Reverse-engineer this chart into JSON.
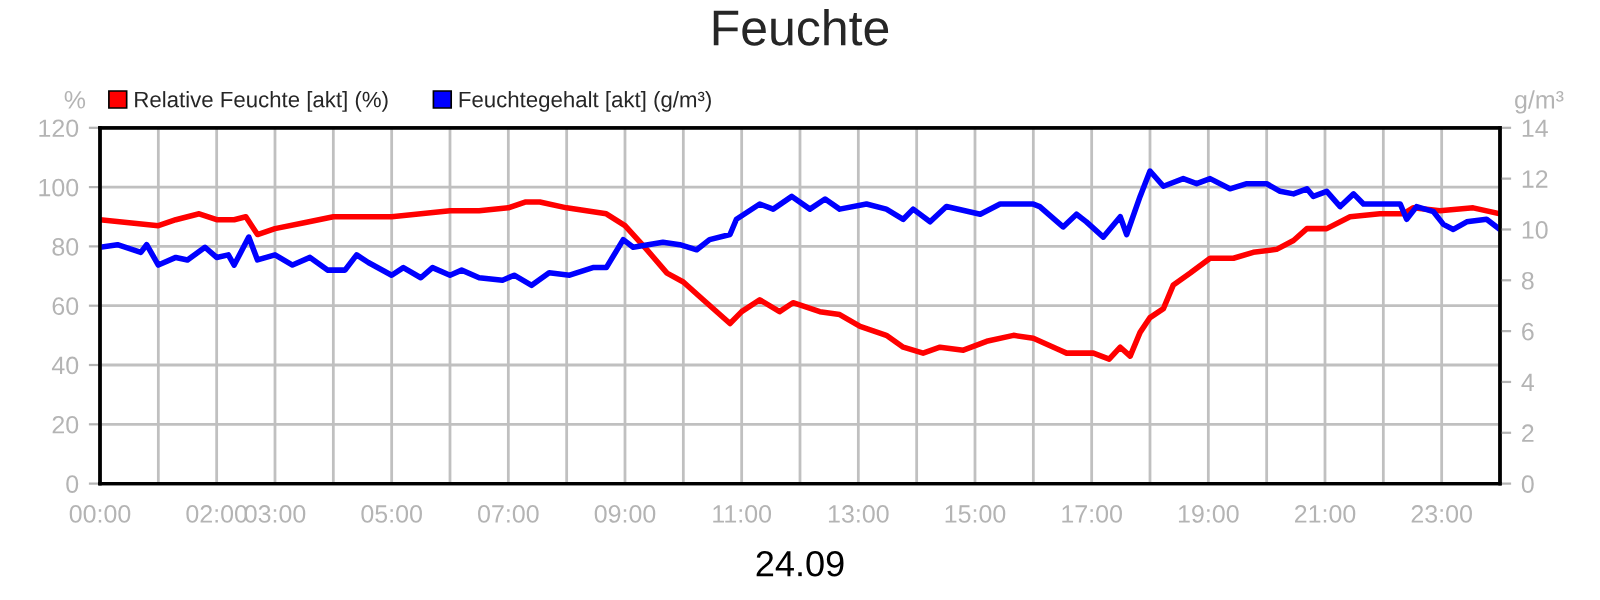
{
  "chart_data": {
    "type": "line",
    "title": "Feuchte",
    "xlabel": "24.09",
    "ylabel": "%",
    "y2label": "g/m³",
    "xlim": [
      0,
      24
    ],
    "xticks": [
      {
        "value": 0,
        "label": "00:00"
      },
      {
        "value": 1,
        "label": null
      },
      {
        "value": 2,
        "label": "02:00"
      },
      {
        "value": 3,
        "label": "03:00"
      },
      {
        "value": 4,
        "label": null
      },
      {
        "value": 5,
        "label": "05:00"
      },
      {
        "value": 6,
        "label": null
      },
      {
        "value": 7,
        "label": "07:00"
      },
      {
        "value": 8,
        "label": null
      },
      {
        "value": 9,
        "label": "09:00"
      },
      {
        "value": 10,
        "label": null
      },
      {
        "value": 11,
        "label": "11:00"
      },
      {
        "value": 12,
        "label": null
      },
      {
        "value": 13,
        "label": "13:00"
      },
      {
        "value": 14,
        "label": null
      },
      {
        "value": 15,
        "label": "15:00"
      },
      {
        "value": 16,
        "label": null
      },
      {
        "value": 17,
        "label": "17:00"
      },
      {
        "value": 18,
        "label": null
      },
      {
        "value": 19,
        "label": "19:00"
      },
      {
        "value": 20,
        "label": null
      },
      {
        "value": 21,
        "label": "21:00"
      },
      {
        "value": 22,
        "label": null
      },
      {
        "value": 23,
        "label": "23:00"
      },
      {
        "value": 24,
        "label": null
      }
    ],
    "ylim": [
      0,
      120
    ],
    "yticks": [
      0,
      20,
      40,
      60,
      80,
      100,
      120
    ],
    "y2lim": [
      0,
      14
    ],
    "y2ticks": [
      0,
      2,
      4,
      6,
      8,
      10,
      12,
      14
    ],
    "grid": true,
    "legend": "top left",
    "marker": "none",
    "line_style": "solid",
    "series": [
      {
        "name": "Relative Feuchte [akt] (%)",
        "color": "#ff0000",
        "x": [
          0,
          0.5,
          1.0,
          1.3,
          1.7,
          2.0,
          2.3,
          2.5,
          2.7,
          3.0,
          3.5,
          4.0,
          4.5,
          5.0,
          5.5,
          6.0,
          6.5,
          7.0,
          7.3,
          7.54,
          8.0,
          8.68,
          9.0,
          9.37,
          9.72,
          10.0,
          10.34,
          10.8,
          11.0,
          11.31,
          11.65,
          11.88,
          12.34,
          12.68,
          13.03,
          13.48,
          13.77,
          14.11,
          14.4,
          14.8,
          15.2,
          15.66,
          16.0,
          16.46,
          16.57,
          17.03,
          17.3,
          17.49,
          17.66,
          17.83,
          18.0,
          18.23,
          18.4,
          18.69,
          19.03,
          19.43,
          19.77,
          20.17,
          20.46,
          20.69,
          21.03,
          21.43,
          21.94,
          22.34,
          22.51,
          22.97,
          23.54,
          24.0
        ],
        "values": [
          89,
          88,
          87,
          89,
          91,
          89,
          89,
          90,
          84,
          86,
          88,
          90,
          90,
          90,
          91,
          92,
          92,
          93,
          95,
          95,
          93,
          91,
          87,
          79,
          71,
          68,
          62,
          54,
          58,
          62,
          58,
          61,
          58,
          57,
          53,
          50,
          46,
          44,
          46,
          45,
          48,
          50,
          49,
          45,
          44,
          44,
          42,
          46,
          43,
          51,
          56,
          59,
          67,
          71,
          76,
          76,
          78,
          79,
          82,
          86,
          86,
          90,
          91,
          91,
          93,
          92,
          93,
          91
        ]
      },
      {
        "name": "Feuchtegehalt [akt] (g/m³)",
        "color": "#0000ff",
        "axis": "y2",
        "x": [
          0,
          0.3,
          0.7,
          0.8,
          1.0,
          1.3,
          1.5,
          1.8,
          2.0,
          2.2,
          2.3,
          2.55,
          2.7,
          3.0,
          3.3,
          3.6,
          3.9,
          4.2,
          4.4,
          4.6,
          5.0,
          5.2,
          5.5,
          5.7,
          6.0,
          6.2,
          6.5,
          6.9,
          7.1,
          7.4,
          7.7,
          8.05,
          8.45,
          8.68,
          8.97,
          9.14,
          9.65,
          9.94,
          10.23,
          10.45,
          10.8,
          10.91,
          11.31,
          11.54,
          11.86,
          12.17,
          12.43,
          12.68,
          13.14,
          13.48,
          13.77,
          13.94,
          14.23,
          14.51,
          15.09,
          15.43,
          16.0,
          16.11,
          16.51,
          16.74,
          16.91,
          17.2,
          17.49,
          17.6,
          17.83,
          18.0,
          18.23,
          18.57,
          18.8,
          19.03,
          19.37,
          19.66,
          20.0,
          20.23,
          20.46,
          20.69,
          20.8,
          21.03,
          21.26,
          21.49,
          21.66,
          21.94,
          22.29,
          22.4,
          22.57,
          22.86,
          23.03,
          23.2,
          23.43,
          23.77,
          24.0
        ],
        "values": [
          9.3,
          9.4,
          9.1,
          9.4,
          8.6,
          8.9,
          8.8,
          9.3,
          8.9,
          9.0,
          8.6,
          9.7,
          8.8,
          9.0,
          8.6,
          8.9,
          8.4,
          8.4,
          9.0,
          8.7,
          8.2,
          8.5,
          8.1,
          8.5,
          8.2,
          8.4,
          8.1,
          8.0,
          8.2,
          7.8,
          8.3,
          8.2,
          8.5,
          8.5,
          9.6,
          9.3,
          9.5,
          9.4,
          9.2,
          9.6,
          9.8,
          10.4,
          11.0,
          10.8,
          11.3,
          10.8,
          11.2,
          10.8,
          11.0,
          10.8,
          10.4,
          10.8,
          10.3,
          10.9,
          10.6,
          11.0,
          11.0,
          10.9,
          10.1,
          10.6,
          10.3,
          9.7,
          10.5,
          9.8,
          11.3,
          12.3,
          11.7,
          12.0,
          11.8,
          12.0,
          11.6,
          11.8,
          11.8,
          11.5,
          11.4,
          11.6,
          11.3,
          11.5,
          10.9,
          11.4,
          11.0,
          11.0,
          11.0,
          10.4,
          10.9,
          10.7,
          10.2,
          10.0,
          10.3,
          10.4,
          10.0
        ]
      }
    ]
  }
}
